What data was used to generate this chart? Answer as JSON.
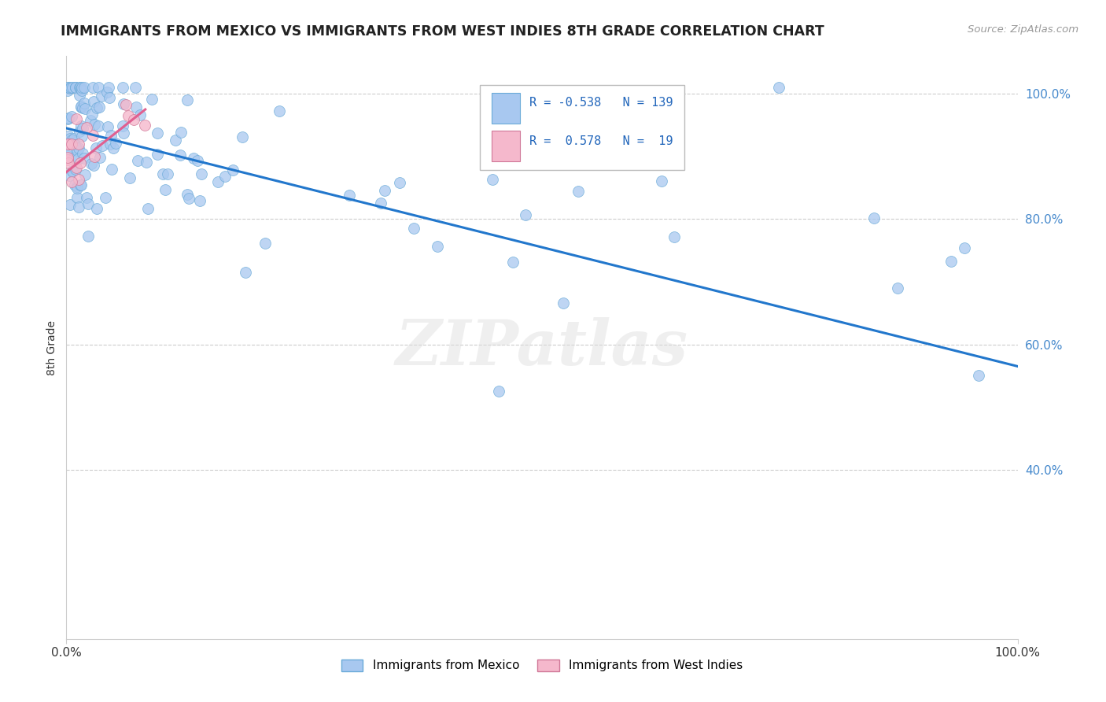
{
  "title": "IMMIGRANTS FROM MEXICO VS IMMIGRANTS FROM WEST INDIES 8TH GRADE CORRELATION CHART",
  "source": "Source: ZipAtlas.com",
  "ylabel": "8th Grade",
  "legend_label_blue": "Immigrants from Mexico",
  "legend_label_pink": "Immigrants from West Indies",
  "R_blue": -0.538,
  "N_blue": 139,
  "R_pink": 0.578,
  "N_pink": 19,
  "blue_color": "#a8c8f0",
  "blue_edge_color": "#6aaad8",
  "blue_line_color": "#2277cc",
  "pink_color": "#f5b8cc",
  "pink_edge_color": "#d07898",
  "pink_line_color": "#e06090",
  "background_color": "#ffffff",
  "watermark": "ZIPatlas",
  "y_tick_vals": [
    0.4,
    0.6,
    0.8,
    1.0
  ],
  "y_tick_labels": [
    "40.0%",
    "60.0%",
    "80.0%",
    "100.0%"
  ],
  "grid_color": "#cccccc",
  "title_color": "#222222",
  "source_color": "#999999",
  "tick_color": "#4488cc",
  "xlim": [
    0.0,
    1.0
  ],
  "ylim": [
    0.13,
    1.06
  ],
  "blue_line_x": [
    0.0,
    1.0
  ],
  "blue_line_y": [
    0.945,
    0.565
  ],
  "pink_line_x": [
    0.0,
    0.083
  ],
  "pink_line_y": [
    0.875,
    0.975
  ]
}
